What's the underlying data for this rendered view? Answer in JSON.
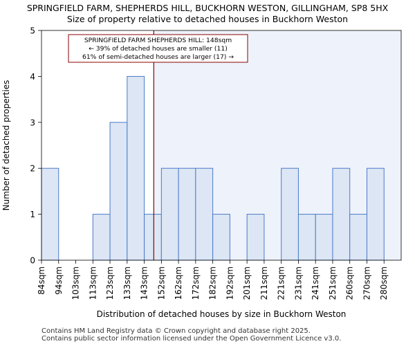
{
  "chart_data": {
    "type": "bar",
    "title": "SPRINGFIELD FARM, SHEPHERDS HILL, BUCKHORN WESTON, GILLINGHAM, SP8 5HX",
    "subtitle": "Size of property relative to detached houses in Buckhorn Weston",
    "xlabel": "Distribution of detached houses by size in Buckhorn Weston",
    "ylabel": "Number of detached properties",
    "categories": [
      "84sqm",
      "94sqm",
      "103sqm",
      "113sqm",
      "123sqm",
      "133sqm",
      "143sqm",
      "152sqm",
      "162sqm",
      "172sqm",
      "182sqm",
      "192sqm",
      "201sqm",
      "211sqm",
      "221sqm",
      "231sqm",
      "241sqm",
      "251sqm",
      "260sqm",
      "270sqm",
      "280sqm"
    ],
    "values": [
      2,
      0,
      0,
      1,
      3,
      4,
      1,
      2,
      2,
      2,
      1,
      0,
      1,
      0,
      2,
      1,
      1,
      2,
      1,
      2,
      0
    ],
    "ylim": [
      0,
      5
    ],
    "yticks": [
      0,
      1,
      2,
      3,
      4,
      5
    ],
    "grid": false,
    "subject_value": 148,
    "subject_unit": "sqm",
    "annotation": {
      "line1": "SPRINGFIELD FARM SHEPHERDS HILL: 148sqm",
      "line2": "← 39% of detached houses are smaller (11)",
      "line3": "61% of semi-detached houses are larger (17) →"
    },
    "colors": {
      "bar_fill": "#dce6f4",
      "bar_edge": "#4a7ac8",
      "marker": "#8b0000",
      "highlight_bg": "#eef2fb"
    }
  },
  "footer": {
    "line1": "Contains HM Land Registry data © Crown copyright and database right 2025.",
    "line2": "Contains public sector information licensed under the Open Government Licence v3.0."
  }
}
